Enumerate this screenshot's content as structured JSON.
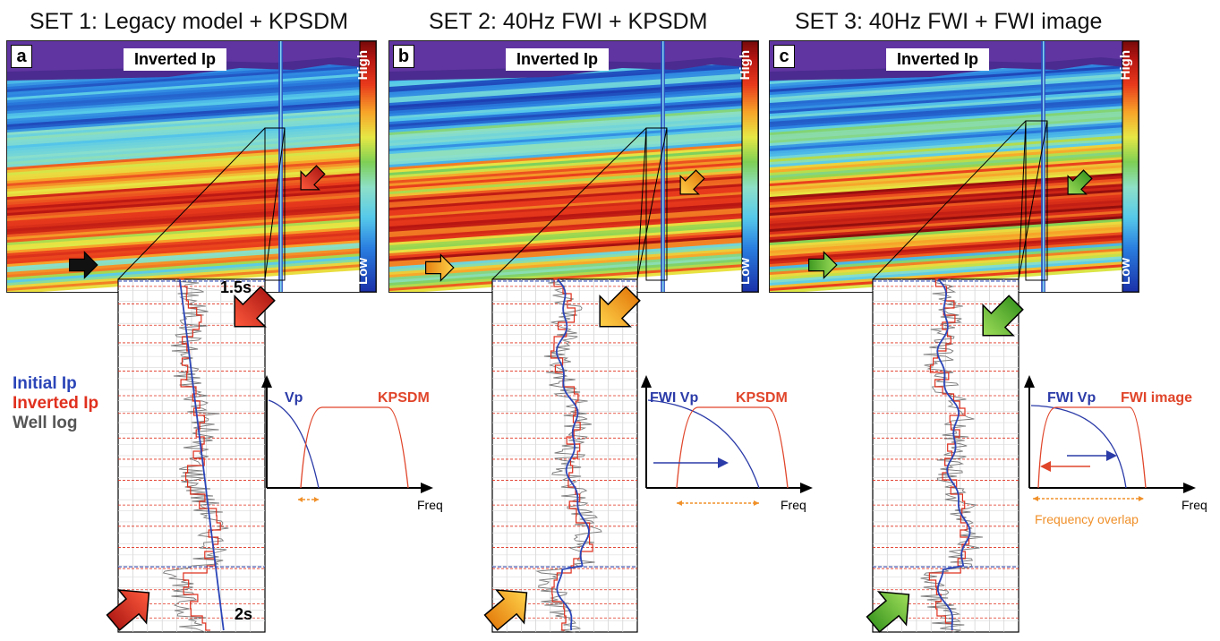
{
  "sets": [
    {
      "title": "SET 1: Legacy model + KPSDM",
      "letter": "a",
      "panel_label": "Inverted Ip",
      "scale_high": "High",
      "scale_low": "Low",
      "arrow_color": "#e03a2a",
      "vp_label": "Vp",
      "image_label": "KPSDM",
      "freq_label": "Freq",
      "mode": 1
    },
    {
      "title": "SET 2: 40Hz FWI + KPSDM",
      "letter": "b",
      "panel_label": "Inverted Ip",
      "scale_high": "High",
      "scale_low": "Low",
      "arrow_color": "#f4a21c",
      "vp_label": "FWI Vp",
      "image_label": "KPSDM",
      "freq_label": "Freq",
      "mode": 2
    },
    {
      "title": "SET 3: 40Hz FWI + FWI image",
      "letter": "c",
      "panel_label": "Inverted Ip",
      "scale_high": "High",
      "scale_low": "Low",
      "arrow_color": "#5cb531",
      "vp_label": "FWI Vp",
      "image_label": "FWI image",
      "freq_label": "Freq",
      "overlap_label": "Frequency overlap",
      "mode": 3
    }
  ],
  "legend": {
    "initial": "Initial Ip",
    "inverted": "Inverted Ip",
    "well": "Well log"
  },
  "times": {
    "top": "1.5s",
    "bottom": "2s"
  },
  "colors": {
    "initial": "#2b45b8",
    "inverted": "#e0301e",
    "well": "#555555",
    "overlap": "#f0902a",
    "vp_curve": "#2b3ba8",
    "image_curve": "#e0452a"
  }
}
